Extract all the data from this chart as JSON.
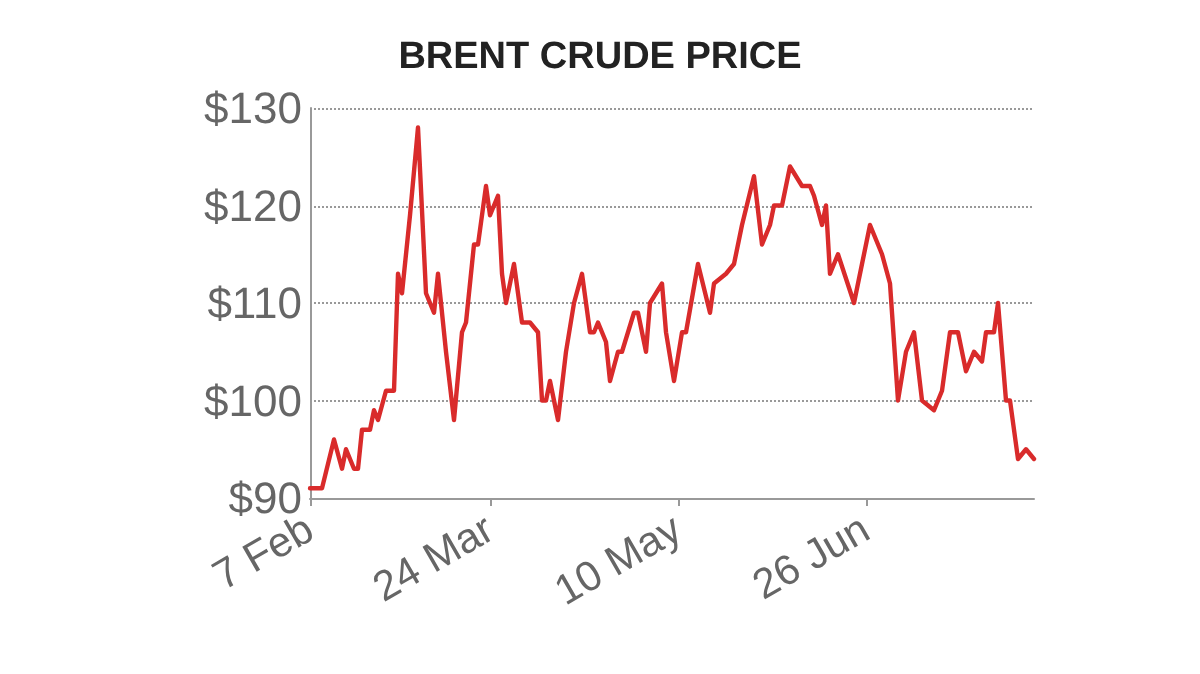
{
  "chart_data": {
    "type": "line",
    "title": "BRENT CRUDE PRICE",
    "x": [
      "--02-07",
      "--02-10",
      "--02-13",
      "--02-15",
      "--02-16",
      "--02-18",
      "--02-19",
      "--02-20",
      "--02-22",
      "--02-23",
      "--02-24",
      "--02-26",
      "--02-28",
      "--03-01",
      "--03-02",
      "--03-04",
      "--03-06",
      "--03-08",
      "--03-10",
      "--03-11",
      "--03-13",
      "--03-15",
      "--03-17",
      "--03-18",
      "--03-20",
      "--03-21",
      "--03-23",
      "--03-24",
      "--03-26",
      "--03-27",
      "--03-28",
      "--03-30",
      "--04-01",
      "--04-03",
      "--04-05",
      "--04-06",
      "--04-07",
      "--04-08",
      "--04-10",
      "--04-12",
      "--04-14",
      "--04-16",
      "--04-18",
      "--04-19",
      "--04-20",
      "--04-22",
      "--04-23",
      "--04-25",
      "--04-26",
      "--04-29",
      "--04-30",
      "--05-02",
      "--05-03",
      "--05-06",
      "--05-07",
      "--05-09",
      "--05-11",
      "--05-12",
      "--05-15",
      "--05-18",
      "--05-19",
      "--05-22",
      "--05-24",
      "--05-26",
      "--05-29",
      "--05-31",
      "--06-02",
      "--06-03",
      "--06-05",
      "--06-07",
      "--06-10",
      "--06-12",
      "--06-13",
      "--06-15",
      "--06-16",
      "--06-17",
      "--06-19",
      "--06-23",
      "--06-25",
      "--06-27",
      "--06-30",
      "--07-02",
      "--07-04",
      "--07-06",
      "--07-08",
      "--07-10",
      "--07-13",
      "--07-15",
      "--07-17",
      "--07-19",
      "--07-21",
      "--07-23",
      "--07-25",
      "--07-26",
      "--07-28",
      "--07-29",
      "--07-31",
      "--08-01",
      "--08-03",
      "--08-05",
      "--08-07"
    ],
    "series": [
      {
        "color": "#d92b2b",
        "values": [
          91,
          91,
          96,
          93,
          95,
          93,
          93,
          97,
          97,
          99,
          98,
          101,
          101,
          113,
          111,
          119,
          128,
          111,
          109,
          113,
          105,
          98,
          107,
          108,
          116,
          116,
          122,
          119,
          121,
          113,
          110,
          114,
          108,
          108,
          107,
          100,
          100,
          102,
          98,
          105,
          110,
          113,
          107,
          107,
          108,
          106,
          102,
          105,
          105,
          109,
          109,
          105,
          110,
          112,
          107,
          102,
          107,
          107,
          114,
          109,
          112,
          113,
          114,
          118,
          123,
          116,
          118,
          120,
          120,
          124,
          122,
          122,
          121,
          118,
          120,
          113,
          115,
          110,
          114,
          118,
          115,
          112,
          100,
          105,
          107,
          100,
          99,
          101,
          107,
          107,
          103,
          105,
          104,
          107,
          107,
          110,
          100,
          100,
          94,
          95,
          94
        ]
      }
    ],
    "xlim": [
      "--02-07",
      "--08-07"
    ],
    "xticks": [
      {
        "value": "--02-07",
        "label": "7 Feb"
      },
      {
        "value": "--03-24",
        "label": "24 Mar"
      },
      {
        "value": "--05-10",
        "label": "10 May"
      },
      {
        "value": "--06-26",
        "label": "26 Jun"
      }
    ],
    "ylim": [
      90,
      130
    ],
    "yticks": [
      {
        "value": 90,
        "label": "$90"
      },
      {
        "value": 100,
        "label": "$100"
      },
      {
        "value": 110,
        "label": "$110"
      },
      {
        "value": 120,
        "label": "$120"
      },
      {
        "value": 130,
        "label": "$130"
      }
    ],
    "grid": "y",
    "marker": "none",
    "line_style": "solid"
  }
}
